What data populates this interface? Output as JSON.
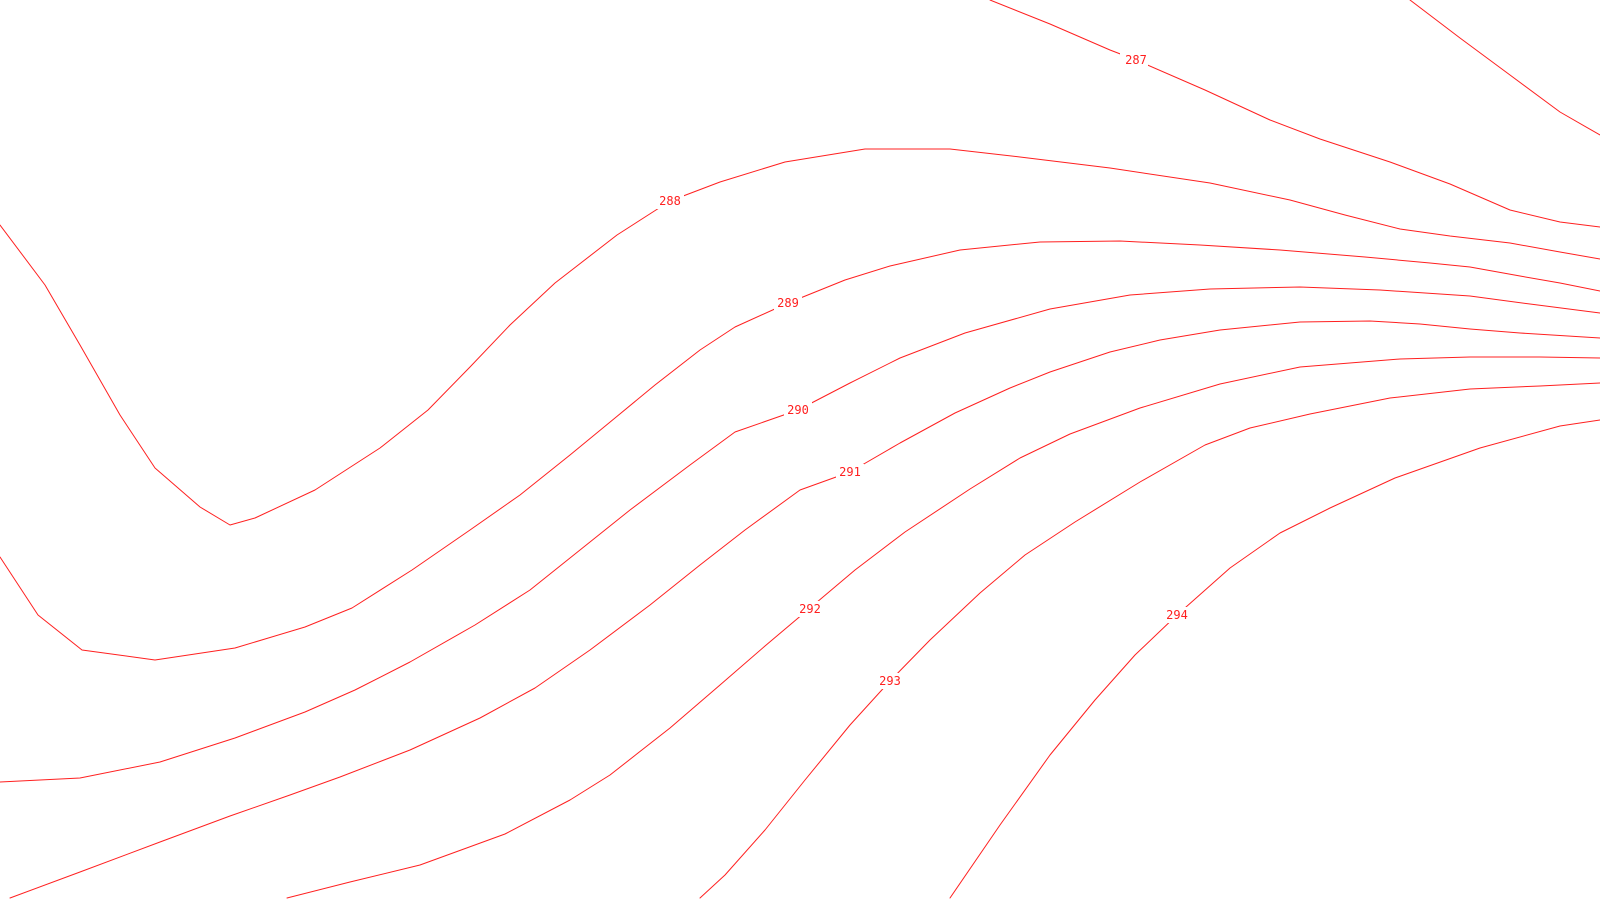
{
  "map": {
    "line_color": "#ff2020",
    "background_color": "#ffffff",
    "contours": [
      {
        "level": "287"
      },
      {
        "level": "288"
      },
      {
        "level": "289"
      },
      {
        "level": "290"
      },
      {
        "level": "291"
      },
      {
        "level": "292"
      },
      {
        "level": "293"
      },
      {
        "level": "294"
      }
    ]
  }
}
